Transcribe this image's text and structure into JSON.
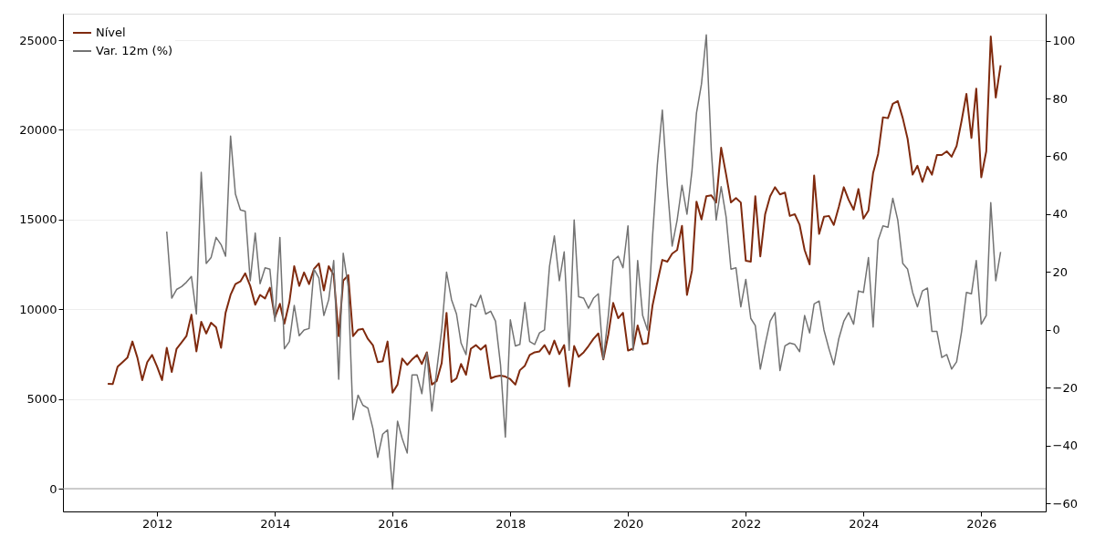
{
  "chart_data": {
    "type": "line",
    "xlim": [
      "2010-05-27",
      "2027-02-05"
    ],
    "xticks": [
      "2012",
      "2014",
      "2016",
      "2018",
      "2020",
      "2022",
      "2024",
      "2026"
    ],
    "ylim": [
      -1270,
      26474
    ],
    "yticks": [
      0,
      5000,
      10000,
      15000,
      20000,
      25000
    ],
    "y2lim": [
      -62.7,
      109.3
    ],
    "y2ticks": [
      -60,
      -40,
      -20,
      0,
      20,
      40,
      60,
      80,
      100
    ],
    "grid": "y",
    "legend": "top left",
    "line_style": "solid",
    "marker": "none",
    "ref_lines": [
      {
        "axis": "y",
        "value": 0,
        "color": "#a0a0a0"
      }
    ],
    "series": [
      {
        "name": "Nível",
        "color": "#7f2a0e",
        "axis": "y",
        "x": [
          "2011-03",
          "2011-04",
          "2011-05",
          "2011-06",
          "2011-07",
          "2011-08",
          "2011-09",
          "2011-10",
          "2011-11",
          "2011-12",
          "2012-01",
          "2012-02",
          "2012-03",
          "2012-04",
          "2012-05",
          "2012-06",
          "2012-07",
          "2012-08",
          "2012-09",
          "2012-10",
          "2012-11",
          "2012-12",
          "2013-01",
          "2013-02",
          "2013-03",
          "2013-04",
          "2013-05",
          "2013-06",
          "2013-07",
          "2013-08",
          "2013-09",
          "2013-10",
          "2013-11",
          "2013-12",
          "2014-01",
          "2014-02",
          "2014-03",
          "2014-04",
          "2014-05",
          "2014-06",
          "2014-07",
          "2014-08",
          "2014-09",
          "2014-10",
          "2014-11",
          "2014-12",
          "2015-01",
          "2015-02",
          "2015-03",
          "2015-04",
          "2015-05",
          "2015-06",
          "2015-07",
          "2015-08",
          "2015-09",
          "2015-10",
          "2015-11",
          "2015-12",
          "2016-01",
          "2016-02",
          "2016-03",
          "2016-04",
          "2016-05",
          "2016-06",
          "2016-07",
          "2016-08",
          "2016-09",
          "2016-10",
          "2016-11",
          "2016-12",
          "2017-01",
          "2017-02",
          "2017-03",
          "2017-04",
          "2017-05",
          "2017-06",
          "2017-07",
          "2017-08",
          "2017-09",
          "2017-10",
          "2017-11",
          "2017-12",
          "2018-01",
          "2018-02",
          "2018-03",
          "2018-04",
          "2018-05",
          "2018-06",
          "2018-07",
          "2018-08",
          "2018-09",
          "2018-10",
          "2018-11",
          "2018-12",
          "2019-01",
          "2019-02",
          "2019-03",
          "2019-04",
          "2019-05",
          "2019-06",
          "2019-07",
          "2019-08",
          "2019-09",
          "2019-10",
          "2019-11",
          "2019-12",
          "2020-01",
          "2020-02",
          "2020-03",
          "2020-04",
          "2020-05",
          "2020-06",
          "2020-07",
          "2020-08",
          "2020-09",
          "2020-10",
          "2020-11",
          "2020-12",
          "2021-01",
          "2021-02",
          "2021-03",
          "2021-04",
          "2021-05",
          "2021-06",
          "2021-07",
          "2021-08",
          "2021-09",
          "2021-10",
          "2021-11",
          "2021-12",
          "2022-01",
          "2022-02",
          "2022-03",
          "2022-04",
          "2022-05",
          "2022-06",
          "2022-07",
          "2022-08",
          "2022-09",
          "2022-10",
          "2022-11",
          "2022-12",
          "2023-01",
          "2023-02",
          "2023-03",
          "2023-04",
          "2023-05",
          "2023-06",
          "2023-07",
          "2023-08",
          "2023-09",
          "2023-10",
          "2023-11",
          "2023-12",
          "2024-01",
          "2024-02",
          "2024-03",
          "2024-04",
          "2024-05",
          "2024-06",
          "2024-07",
          "2024-08",
          "2024-09",
          "2024-10",
          "2024-11",
          "2024-12",
          "2025-01",
          "2025-02",
          "2025-03",
          "2025-04",
          "2025-05",
          "2025-06",
          "2025-07",
          "2025-08",
          "2025-09",
          "2025-10",
          "2025-11",
          "2025-12",
          "2026-01",
          "2026-02",
          "2026-03",
          "2026-04",
          "2026-05"
        ],
        "values": [
          5850,
          5830,
          6800,
          7050,
          7300,
          8200,
          7300,
          6050,
          7050,
          7450,
          6800,
          6050,
          7850,
          6500,
          7800,
          8150,
          8500,
          9700,
          7650,
          9300,
          8650,
          9250,
          9000,
          7850,
          9800,
          10800,
          11400,
          11550,
          12000,
          11300,
          10250,
          10800,
          10600,
          11200,
          9550,
          10300,
          9200,
          10400,
          12400,
          11300,
          12050,
          11400,
          12250,
          12550,
          11050,
          12400,
          11900,
          8500,
          11600,
          11900,
          8500,
          8850,
          8900,
          8350,
          8000,
          7050,
          7100,
          8200,
          5350,
          5800,
          7250,
          6900,
          7200,
          7450,
          6950,
          7600,
          5800,
          6000,
          7000,
          9800,
          5950,
          6150,
          6950,
          6350,
          7800,
          8000,
          7750,
          8000,
          6150,
          6250,
          6300,
          6250,
          6100,
          5800,
          6600,
          6850,
          7450,
          7600,
          7650,
          8000,
          7500,
          8250,
          7500,
          8000,
          5700,
          7950,
          7350,
          7600,
          7950,
          8350,
          8650,
          7200,
          8600,
          10350,
          9500,
          9800,
          7700,
          7800,
          9100,
          8050,
          8100,
          10200,
          11500,
          12750,
          12650,
          13100,
          13300,
          14650,
          10800,
          12150,
          16000,
          15000,
          16300,
          16350,
          15950,
          19000,
          17500,
          15950,
          16200,
          15950,
          12700,
          12650,
          16300,
          12950,
          15300,
          16300,
          16800,
          16400,
          16500,
          15200,
          15300,
          14700,
          13300,
          12500,
          17450,
          14200,
          15150,
          15200,
          14700,
          15700,
          16800,
          16100,
          15550,
          16700,
          15050,
          15500,
          17600,
          18650,
          20700,
          20650,
          21450,
          21600,
          20650,
          19500,
          17500,
          18000,
          17100,
          17950,
          17500,
          18600,
          18600,
          18800,
          18500,
          19100,
          20500,
          22000,
          19550,
          22300,
          17350,
          18800,
          25200,
          21800,
          23600
        ]
      },
      {
        "name": "Var. 12m (%)",
        "color": "#737373",
        "axis": "y2",
        "x": [
          "2012-03",
          "2012-04",
          "2012-05",
          "2012-06",
          "2012-07",
          "2012-08",
          "2012-09",
          "2012-10",
          "2012-11",
          "2012-12",
          "2013-01",
          "2013-02",
          "2013-03",
          "2013-04",
          "2013-05",
          "2013-06",
          "2013-07",
          "2013-08",
          "2013-09",
          "2013-10",
          "2013-11",
          "2013-12",
          "2014-01",
          "2014-02",
          "2014-03",
          "2014-04",
          "2014-05",
          "2014-06",
          "2014-07",
          "2014-08",
          "2014-09",
          "2014-10",
          "2014-11",
          "2014-12",
          "2015-01",
          "2015-02",
          "2015-03",
          "2015-04",
          "2015-05",
          "2015-06",
          "2015-07",
          "2015-08",
          "2015-09",
          "2015-10",
          "2015-11",
          "2015-12",
          "2016-01",
          "2016-02",
          "2016-03",
          "2016-04",
          "2016-05",
          "2016-06",
          "2016-07",
          "2016-08",
          "2016-09",
          "2016-10",
          "2016-11",
          "2016-12",
          "2017-01",
          "2017-02",
          "2017-03",
          "2017-04",
          "2017-05",
          "2017-06",
          "2017-07",
          "2017-08",
          "2017-09",
          "2017-10",
          "2017-11",
          "2017-12",
          "2018-01",
          "2018-02",
          "2018-03",
          "2018-04",
          "2018-05",
          "2018-06",
          "2018-07",
          "2018-08",
          "2018-09",
          "2018-10",
          "2018-11",
          "2018-12",
          "2019-01",
          "2019-02",
          "2019-03",
          "2019-04",
          "2019-05",
          "2019-06",
          "2019-07",
          "2019-08",
          "2019-09",
          "2019-10",
          "2019-11",
          "2019-12",
          "2020-01",
          "2020-02",
          "2020-03",
          "2020-04",
          "2020-05",
          "2020-06",
          "2020-07",
          "2020-08",
          "2020-09",
          "2020-10",
          "2020-11",
          "2020-12",
          "2021-01",
          "2021-02",
          "2021-03",
          "2021-04",
          "2021-05",
          "2021-06",
          "2021-07",
          "2021-08",
          "2021-09",
          "2021-10",
          "2021-11",
          "2021-12",
          "2022-01",
          "2022-02",
          "2022-03",
          "2022-04",
          "2022-05",
          "2022-06",
          "2022-07",
          "2022-08",
          "2022-09",
          "2022-10",
          "2022-11",
          "2022-12",
          "2023-01",
          "2023-02",
          "2023-03",
          "2023-04",
          "2023-05",
          "2023-06",
          "2023-07",
          "2023-08",
          "2023-09",
          "2023-10",
          "2023-11",
          "2023-12",
          "2024-01",
          "2024-02",
          "2024-03",
          "2024-04",
          "2024-05",
          "2024-06",
          "2024-07",
          "2024-08",
          "2024-09",
          "2024-10",
          "2024-11",
          "2024-12",
          "2025-01",
          "2025-02",
          "2025-03",
          "2025-04",
          "2025-05",
          "2025-06",
          "2025-07",
          "2025-08",
          "2025-09",
          "2025-10",
          "2025-11",
          "2025-12",
          "2026-01",
          "2026-02",
          "2026-03",
          "2026-04",
          "2026-05"
        ],
        "values": [
          34,
          11,
          14,
          15,
          16.5,
          18.5,
          5.5,
          54.5,
          23,
          25,
          32,
          29.5,
          25.5,
          67,
          47,
          41.5,
          41,
          17,
          33.5,
          16,
          21.5,
          21,
          3,
          32,
          -6.5,
          -4,
          8.5,
          -2,
          0,
          0.5,
          21,
          18,
          5,
          10.5,
          24,
          -17,
          26.5,
          15,
          -31,
          -22.5,
          -26,
          -27,
          -34,
          -44,
          -36,
          -34.5,
          -55,
          -31.5,
          -37.5,
          -42.5,
          -15.5,
          -15.5,
          -22,
          -8,
          -28,
          -14,
          0,
          20,
          10.5,
          5.5,
          -4.5,
          -8.5,
          9,
          8,
          12,
          5.5,
          6.5,
          3,
          -12,
          -37,
          3.5,
          -5.5,
          -5,
          9.5,
          -4,
          -5,
          -1,
          0,
          22,
          32.5,
          17,
          27,
          -7,
          38,
          11.5,
          11,
          7.5,
          11,
          12.5,
          -10,
          5,
          24,
          25.5,
          21.5,
          36,
          -7,
          24,
          5,
          0,
          32,
          57,
          76,
          50,
          29,
          38,
          50,
          40,
          55,
          75,
          85,
          102,
          62,
          38,
          49.5,
          39,
          21,
          21.5,
          8,
          17.5,
          4,
          1.5,
          -13.5,
          -5,
          3,
          6,
          -14,
          -5.5,
          -4.5,
          -5,
          -7.5,
          5,
          -1,
          9,
          10,
          0,
          -6.5,
          -12,
          -3,
          3,
          6,
          2,
          13.5,
          13,
          25,
          1,
          31,
          36,
          35.5,
          45.5,
          38,
          23,
          21,
          13,
          8,
          13.5,
          14.5,
          -0.5,
          -0.5,
          -9.5,
          -8.5,
          -13.5,
          -11,
          -0.5,
          13,
          12.5,
          24,
          2,
          5,
          44,
          17,
          27
        ]
      }
    ]
  }
}
